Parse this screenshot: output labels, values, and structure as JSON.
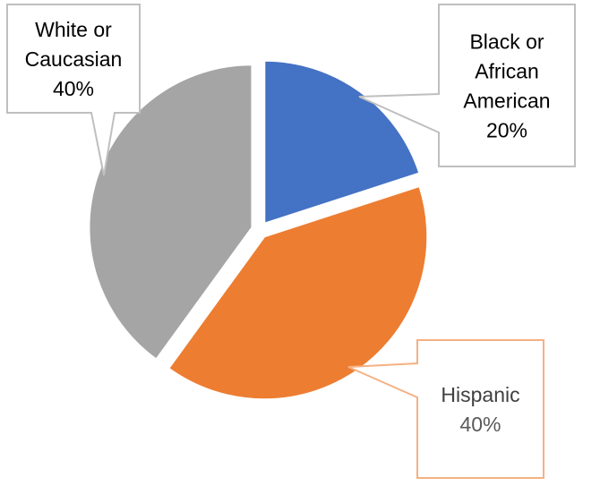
{
  "chart_data": {
    "type": "pie",
    "title": "",
    "start_angle_deg": 0,
    "direction": "clockwise",
    "legend": "none",
    "slices": [
      {
        "name": "Black or African American",
        "label_lines": [
          "Black or",
          "African",
          "American"
        ],
        "value_label": "20%",
        "value": 20,
        "color": "#4472C4",
        "label_border_color": "#BFBFBF",
        "label_text_color": "#000000",
        "value_text_color": "#000000"
      },
      {
        "name": "Hispanic",
        "label_lines": [
          "Hispanic"
        ],
        "value_label": "40%",
        "value": 40,
        "color": "#ED7D31",
        "label_border_color": "#F4B183",
        "label_text_color": "#404040",
        "value_text_color": "#595959"
      },
      {
        "name": "White or Caucasian",
        "label_lines": [
          "White or",
          "Caucasian"
        ],
        "value_label": "40%",
        "value": 40,
        "color": "#A5A5A5",
        "label_border_color": "#BFBFBF",
        "label_text_color": "#000000",
        "value_text_color": "#000000"
      }
    ]
  }
}
